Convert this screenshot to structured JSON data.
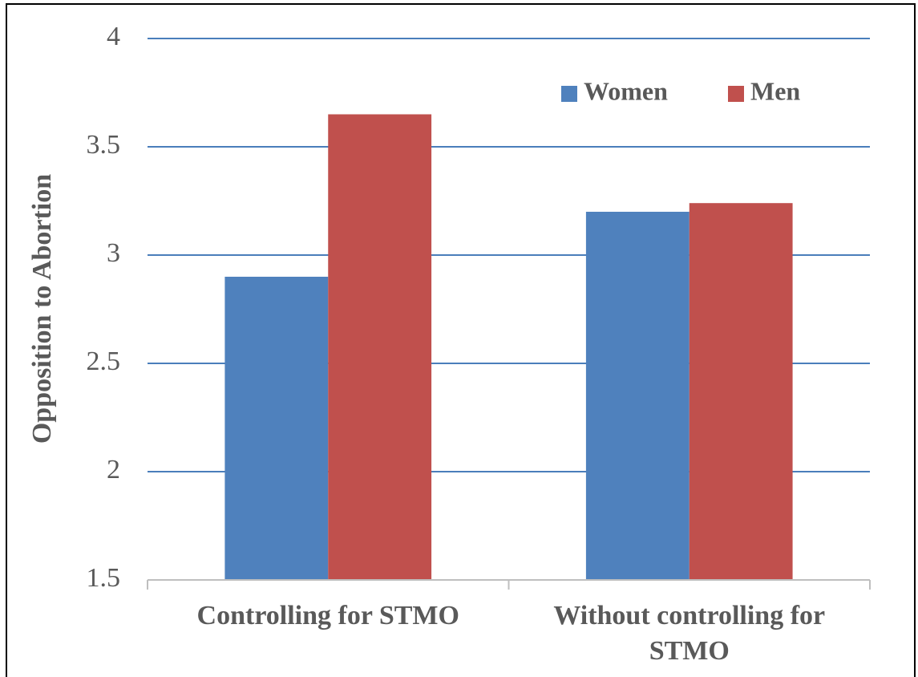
{
  "chart_data": {
    "type": "bar",
    "y_label": "Opposition to Abortion",
    "categories": [
      "Controlling for STMO",
      "Without controlling for STMO"
    ],
    "series": [
      {
        "name": "Women",
        "color": "#4f81bd",
        "values": [
          2.9,
          3.2
        ]
      },
      {
        "name": "Men",
        "color": "#c0504d",
        "values": [
          3.65,
          3.24
        ]
      }
    ],
    "ylim": [
      1.5,
      4
    ],
    "yticks": [
      1.5,
      2,
      2.5,
      3,
      3.5,
      4
    ],
    "grid": true,
    "legend": "top-right"
  }
}
